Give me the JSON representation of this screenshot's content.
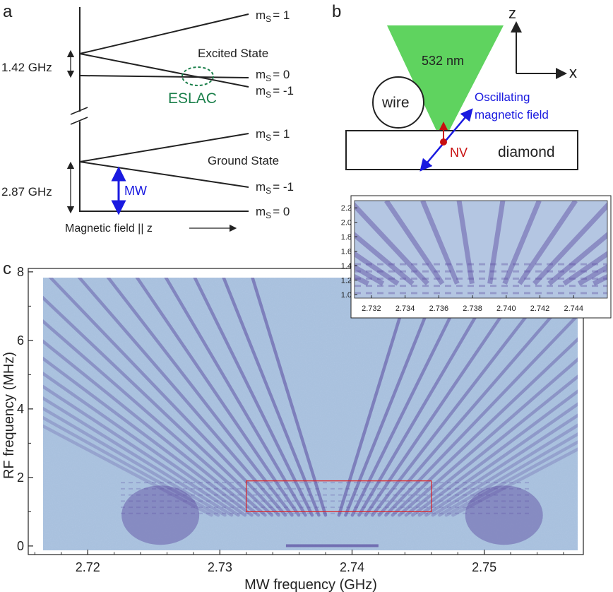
{
  "colors": {
    "plot_bg": "#a9c1de",
    "stripe": "#5a4aa0",
    "mw_arrow": "#1a1ae0",
    "eslac": "#1a7f4a",
    "beam": "#5fd35f",
    "nv": "#c81010",
    "zoom_box": "#e02020"
  },
  "panel_a": {
    "label": "a",
    "ms_excited_top": "m",
    "ms_labels": {
      "exc_p1": "m",
      "exc_0": "m",
      "exc_m1": "m",
      "gnd_p1": "m",
      "gnd_m1": "m",
      "gnd_0": "m"
    },
    "ms_sub": "S",
    "ms_values": {
      "exc_p1": "= 1",
      "exc_0": "= 0",
      "exc_m1": "= -1",
      "gnd_p1": "= 1",
      "gnd_m1": "= -1",
      "gnd_0": "= 0"
    },
    "excited_state": "Excited State",
    "ground_state": "Ground State",
    "eslac": "ESLAC",
    "excited_gap": "1.42 GHz",
    "ground_gap": "2.87 GHz",
    "mw": "MW",
    "field_axis": "Magnetic field || z"
  },
  "panel_b": {
    "label": "b",
    "beam": "532 nm",
    "wire": "wire",
    "nv": "NV",
    "diamond": "diamond",
    "field_line1": "Oscillating",
    "field_line2": "magnetic field",
    "axis_z": "z",
    "axis_x": "x"
  },
  "panel_c": {
    "label": "c",
    "xlabel": "MW frequency (GHz)",
    "ylabel": "RF frequency (MHz)"
  },
  "chart_data": [
    {
      "type": "heatmap",
      "panel": "c",
      "xlabel": "MW frequency (GHz)",
      "ylabel": "RF frequency (MHz)",
      "xlim": [
        2.7155,
        2.7575
      ],
      "ylim": [
        -0.25,
        8.1
      ],
      "xticks": [
        2.72,
        2.73,
        2.74,
        2.75
      ],
      "yticks": [
        0,
        2,
        4,
        6,
        8
      ],
      "image_extent": {
        "x": [
          2.7155,
          2.7575
        ],
        "y": [
          -0.05,
          8.0
        ]
      },
      "resonance_center_ghz": 2.7385,
      "zoom_region": {
        "x": [
          2.732,
          2.746
        ],
        "y": [
          1.0,
          1.9
        ]
      }
    },
    {
      "type": "heatmap",
      "panel": "c-inset",
      "xlim": [
        2.731,
        2.746
      ],
      "ylim": [
        0.95,
        2.3
      ],
      "xticks": [
        2.732,
        2.734,
        2.736,
        2.738,
        2.74,
        2.742,
        2.744
      ],
      "yticks": [
        1.0,
        1.2,
        1.4,
        1.6,
        1.8,
        2.0,
        2.2
      ]
    }
  ]
}
